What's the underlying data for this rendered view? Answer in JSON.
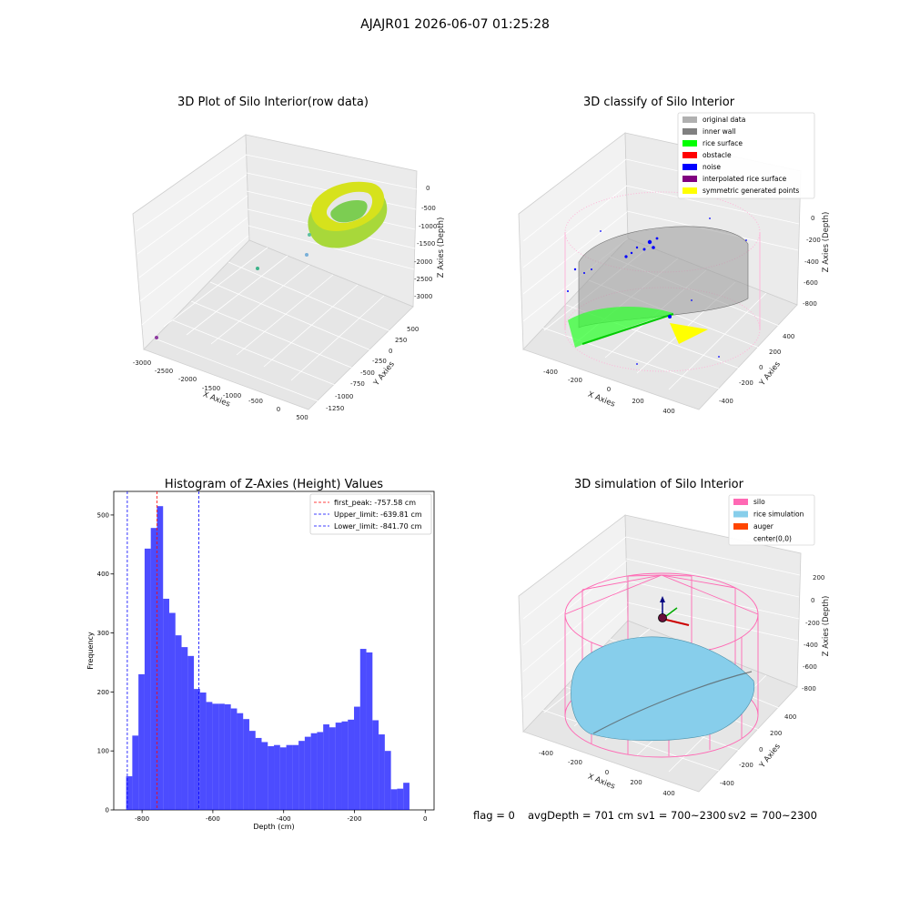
{
  "suptitle": "AJAJR01 2026-06-07 01:25:28",
  "status": {
    "flag": "flag = 0",
    "avg_depth": "avgDepth = 701 cm",
    "sv1": "sv1 = 700~2300",
    "sv2": "sv2 = 700~2300"
  },
  "chart_data": [
    {
      "type": "scatter",
      "title": "3D Plot of Silo Interior(row data)",
      "xlabel": "X Axies",
      "ylabel": "Y Axies",
      "zlabel": "Z Axies (Depth)",
      "x_ticks": [
        -3000,
        -2500,
        -2000,
        -1500,
        -1000,
        -500,
        0,
        500
      ],
      "y_ticks": [
        500,
        250,
        0,
        -250,
        -500,
        -750,
        -1000,
        -1250
      ],
      "z_ticks": [
        0,
        -500,
        -1000,
        -1500,
        -2000,
        -2500,
        -3000
      ],
      "xlim": [
        -3000,
        500
      ],
      "ylim": [
        -1250,
        500
      ],
      "zlim": [
        -3000,
        0
      ],
      "grid": true
    },
    {
      "type": "scatter",
      "title": "3D classify of Silo Interior",
      "xlabel": "X Axies",
      "ylabel": "Y Axies",
      "zlabel": "Z Axies (Depth)",
      "x_ticks": [
        -400,
        -200,
        0,
        200,
        400
      ],
      "y_ticks": [
        400,
        200,
        0,
        -200,
        -400
      ],
      "z_ticks": [
        0,
        -200,
        -400,
        -600,
        -800
      ],
      "xlim": [
        -500,
        500
      ],
      "ylim": [
        -500,
        500
      ],
      "zlim": [
        -850,
        50
      ],
      "legend": {
        "placement": "top-right",
        "entries": [
          {
            "label": "original data",
            "color": "#b0b0b0"
          },
          {
            "label": "inner wall",
            "color": "#808080"
          },
          {
            "label": "rice surface",
            "color": "#00ff00"
          },
          {
            "label": "obstacle",
            "color": "#ff0000"
          },
          {
            "label": "noise",
            "color": "#0000ff"
          },
          {
            "label": "interpolated rice surface",
            "color": "#800080"
          },
          {
            "label": "symmetric generated points",
            "color": "#ffff00"
          }
        ]
      },
      "grid": true
    },
    {
      "type": "bar",
      "title": "Histogram of Z-Axies (Height) Values",
      "xlabel": "Depth (cm)",
      "ylabel": "Frequency",
      "xlim": [
        -880,
        25
      ],
      "ylim": [
        0,
        540
      ],
      "x_ticks": [
        -800,
        -600,
        -400,
        -200,
        0
      ],
      "y_ticks": [
        0,
        100,
        200,
        300,
        400,
        500
      ],
      "bin_start": -845,
      "bin_width": 17.4,
      "values": [
        57,
        126,
        230,
        443,
        478,
        515,
        358,
        334,
        296,
        276,
        261,
        205,
        199,
        183,
        180,
        180,
        179,
        172,
        164,
        154,
        134,
        122,
        115,
        108,
        110,
        106,
        110,
        110,
        117,
        124,
        130,
        132,
        145,
        140,
        148,
        150,
        153,
        175,
        273,
        267,
        152,
        128,
        100,
        35,
        36,
        46
      ],
      "bar_color": "#0000ff",
      "lines": [
        {
          "label": "first_peak: -757.58 cm",
          "value": -757.58,
          "color": "#ff0000"
        },
        {
          "label": "Upper_limit: -639.81 cm",
          "value": -639.81,
          "color": "#0000ff"
        },
        {
          "label": "Lower_limit: -841.70 cm",
          "value": -841.7,
          "color": "#0000ff"
        }
      ],
      "legend": {
        "placement": "top-right"
      },
      "grid": false
    },
    {
      "type": "scatter",
      "title": "3D simulation of Silo Interior",
      "xlabel": "X Axies",
      "ylabel": "Y Axies",
      "zlabel": "Z Axies (Depth)",
      "x_ticks": [
        -400,
        -200,
        0,
        200,
        400
      ],
      "y_ticks": [
        400,
        200,
        0,
        -200,
        -400
      ],
      "z_ticks": [
        200,
        0,
        -200,
        -400,
        -600,
        -800
      ],
      "xlim": [
        -500,
        500
      ],
      "ylim": [
        -500,
        500
      ],
      "zlim": [
        -850,
        300
      ],
      "legend": {
        "placement": "top-right",
        "entries": [
          {
            "label": "silo",
            "color": "#ff69b4"
          },
          {
            "label": "rice simulation",
            "color": "#87ceeb"
          },
          {
            "label": "auger",
            "color": "#ff4500"
          },
          {
            "label": "center(0,0)",
            "color": "none"
          }
        ]
      },
      "grid": true
    }
  ]
}
